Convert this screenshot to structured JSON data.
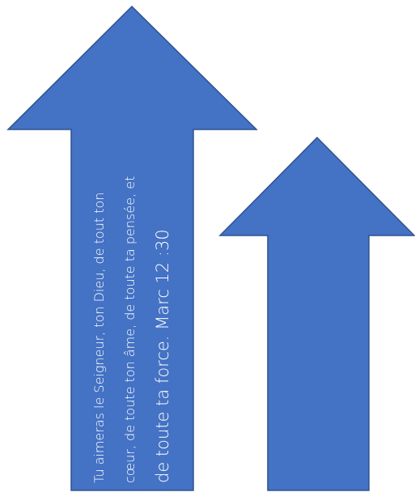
{
  "colors": {
    "arrow_fill": "#4472C4",
    "arrow_stroke": "#2F528F",
    "text": "#ffffff",
    "background": "#ffffff"
  },
  "shapes": {
    "left_arrow": "up-arrow",
    "right_arrow": "up-arrow"
  },
  "verse": {
    "line1": "Tu aimeras le Seigneur, ton Dieu, de tout ton",
    "line2": "cœur, de toute ton âme, de toute ta pensée, et",
    "line3": "de toute ta force. Marc 12 :30"
  }
}
